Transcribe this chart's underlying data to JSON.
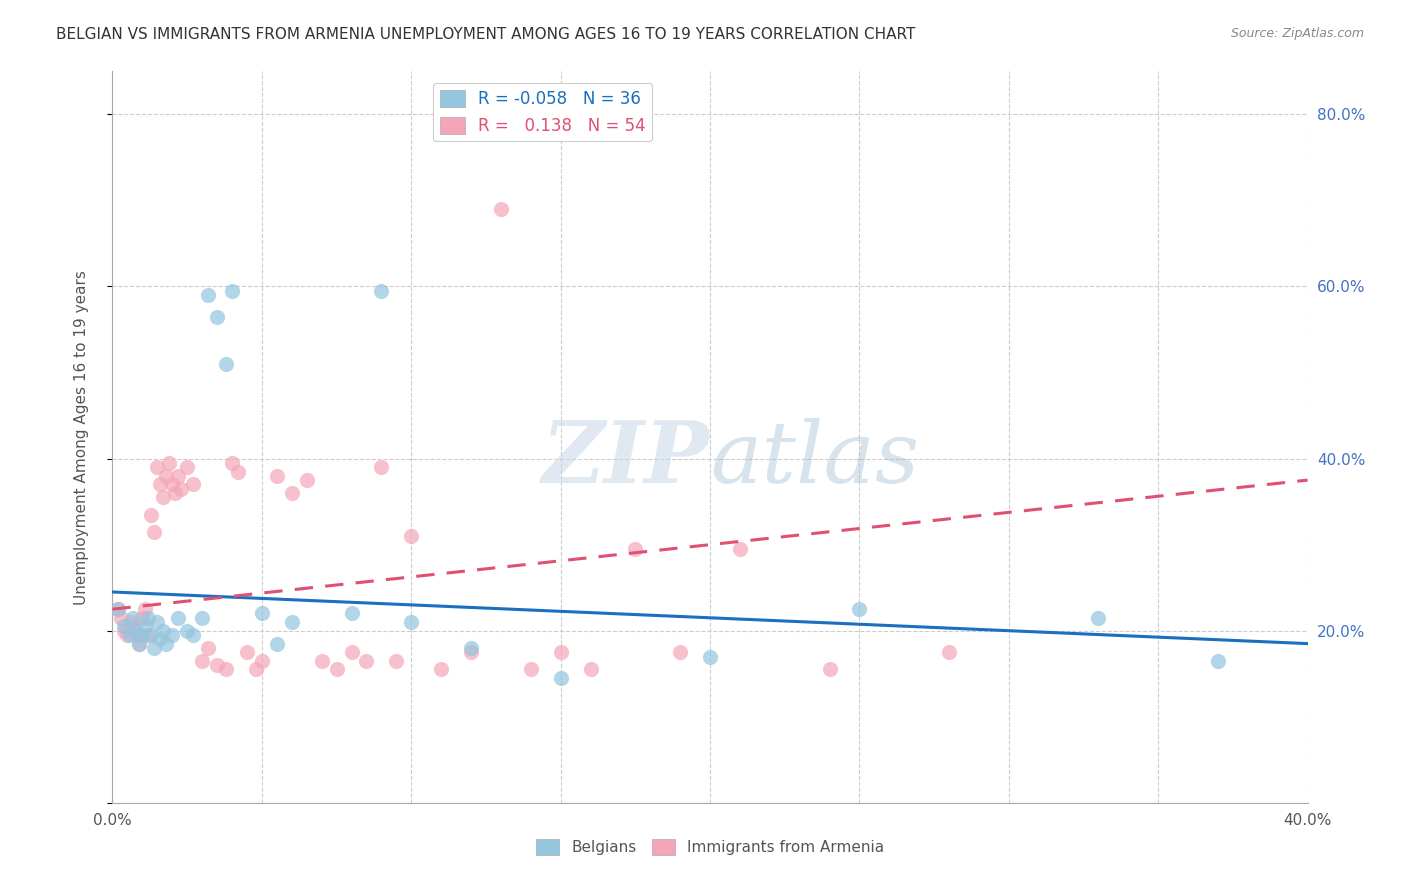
{
  "title": "BELGIAN VS IMMIGRANTS FROM ARMENIA UNEMPLOYMENT AMONG AGES 16 TO 19 YEARS CORRELATION CHART",
  "source": "Source: ZipAtlas.com",
  "ylabel": "Unemployment Among Ages 16 to 19 years",
  "xlim": [
    0.0,
    0.4
  ],
  "ylim": [
    0.0,
    0.85
  ],
  "xticks": [
    0.0,
    0.05,
    0.1,
    0.15,
    0.2,
    0.25,
    0.3,
    0.35,
    0.4
  ],
  "ytick_positions": [
    0.0,
    0.2,
    0.4,
    0.6,
    0.8
  ],
  "ytick_labels_right": [
    "",
    "20.0%",
    "40.0%",
    "60.0%",
    "80.0%"
  ],
  "belgian_color": "#92C5DE",
  "armenian_color": "#F4A6B8",
  "belgian_line_color": "#1A6FBF",
  "armenian_line_color": "#E05070",
  "legend_R_belgian": "-0.058",
  "legend_N_belgian": "36",
  "legend_R_armenian": "0.138",
  "legend_N_armenian": "54",
  "belgians_label": "Belgians",
  "armenians_label": "Immigrants from Armenia",
  "background_color": "#FFFFFF",
  "grid_color": "#CCCCCC",
  "belgian_x": [
    0.002,
    0.004,
    0.006,
    0.007,
    0.008,
    0.009,
    0.01,
    0.011,
    0.012,
    0.013,
    0.014,
    0.015,
    0.016,
    0.017,
    0.018,
    0.02,
    0.022,
    0.025,
    0.027,
    0.03,
    0.032,
    0.035,
    0.038,
    0.04,
    0.05,
    0.055,
    0.06,
    0.08,
    0.09,
    0.1,
    0.12,
    0.15,
    0.2,
    0.25,
    0.33,
    0.37
  ],
  "belgian_y": [
    0.225,
    0.205,
    0.195,
    0.215,
    0.2,
    0.185,
    0.195,
    0.205,
    0.215,
    0.195,
    0.18,
    0.21,
    0.19,
    0.2,
    0.185,
    0.195,
    0.215,
    0.2,
    0.195,
    0.215,
    0.59,
    0.565,
    0.51,
    0.595,
    0.22,
    0.185,
    0.21,
    0.22,
    0.595,
    0.21,
    0.18,
    0.145,
    0.17,
    0.225,
    0.215,
    0.165
  ],
  "armenian_x": [
    0.002,
    0.003,
    0.004,
    0.005,
    0.006,
    0.007,
    0.008,
    0.009,
    0.01,
    0.011,
    0.012,
    0.013,
    0.014,
    0.015,
    0.016,
    0.017,
    0.018,
    0.019,
    0.02,
    0.021,
    0.022,
    0.023,
    0.025,
    0.027,
    0.03,
    0.032,
    0.035,
    0.038,
    0.04,
    0.042,
    0.045,
    0.048,
    0.05,
    0.055,
    0.06,
    0.065,
    0.07,
    0.075,
    0.08,
    0.085,
    0.09,
    0.095,
    0.1,
    0.11,
    0.12,
    0.13,
    0.14,
    0.15,
    0.16,
    0.175,
    0.19,
    0.21,
    0.24,
    0.28
  ],
  "armenian_y": [
    0.225,
    0.215,
    0.2,
    0.195,
    0.21,
    0.205,
    0.195,
    0.185,
    0.215,
    0.225,
    0.195,
    0.335,
    0.315,
    0.39,
    0.37,
    0.355,
    0.38,
    0.395,
    0.37,
    0.36,
    0.38,
    0.365,
    0.39,
    0.37,
    0.165,
    0.18,
    0.16,
    0.155,
    0.395,
    0.385,
    0.175,
    0.155,
    0.165,
    0.38,
    0.36,
    0.375,
    0.165,
    0.155,
    0.175,
    0.165,
    0.39,
    0.165,
    0.31,
    0.155,
    0.175,
    0.69,
    0.155,
    0.175,
    0.155,
    0.295,
    0.175,
    0.295,
    0.155,
    0.175
  ],
  "trend_belgian_x0": 0.0,
  "trend_belgian_y0": 0.245,
  "trend_belgian_x1": 0.4,
  "trend_belgian_y1": 0.185,
  "trend_armenian_x0": 0.0,
  "trend_armenian_y0": 0.225,
  "trend_armenian_x1": 0.4,
  "trend_armenian_y1": 0.375
}
